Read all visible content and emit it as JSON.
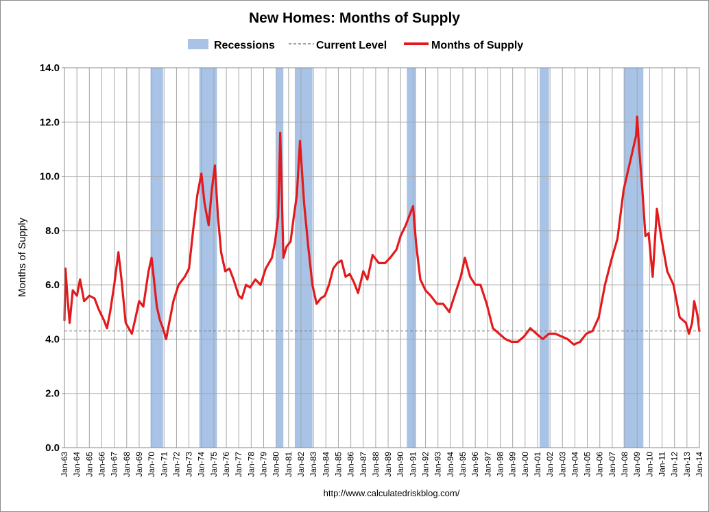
{
  "chart_data": {
    "type": "line",
    "title": "New Homes: Months of Supply",
    "xlabel": "",
    "ylabel": "Months of Supply",
    "ylim": [
      0,
      14
    ],
    "yticks": [
      "0.0",
      "2.0",
      "4.0",
      "6.0",
      "8.0",
      "10.0",
      "12.0",
      "14.0"
    ],
    "ytick_values": [
      0,
      2,
      4,
      6,
      8,
      10,
      12,
      14
    ],
    "x_range": [
      "1963-01",
      "2014-01"
    ],
    "x_tick_labels": [
      "Jan-63",
      "Jan-64",
      "Jan-65",
      "Jan-66",
      "Jan-67",
      "Jan-68",
      "Jan-69",
      "Jan-70",
      "Jan-71",
      "Jan-72",
      "Jan-73",
      "Jan-74",
      "Jan-75",
      "Jan-76",
      "Jan-77",
      "Jan-78",
      "Jan-79",
      "Jan-80",
      "Jan-81",
      "Jan-82",
      "Jan-83",
      "Jan-84",
      "Jan-85",
      "Jan-86",
      "Jan-87",
      "Jan-88",
      "Jan-89",
      "Jan-90",
      "Jan-91",
      "Jan-92",
      "Jan-93",
      "Jan-94",
      "Jan-95",
      "Jan-96",
      "Jan-97",
      "Jan-98",
      "Jan-99",
      "Jan-00",
      "Jan-01",
      "Jan-02",
      "Jan-03",
      "Jan-04",
      "Jan-05",
      "Jan-06",
      "Jan-07",
      "Jan-08",
      "Jan-09",
      "Jan-10",
      "Jan-11",
      "Jan-12",
      "Jan-13",
      "Jan-14"
    ],
    "grid": true,
    "legend_position": "top-center",
    "legend": [
      {
        "label": "Recessions",
        "style": "bar",
        "color": "#a8c3e6"
      },
      {
        "label": "Current Level",
        "style": "dashed",
        "color": "#7f7f7f"
      },
      {
        "label": "Months of Supply",
        "style": "line",
        "color": "#e31a1c"
      }
    ],
    "current_level": 4.3,
    "recessions": [
      {
        "start": "1969-12",
        "end": "1970-11"
      },
      {
        "start": "1973-11",
        "end": "1975-03"
      },
      {
        "start": "1980-01",
        "end": "1980-07"
      },
      {
        "start": "1981-07",
        "end": "1982-11"
      },
      {
        "start": "1990-07",
        "end": "1991-03"
      },
      {
        "start": "2001-03",
        "end": "2001-11"
      },
      {
        "start": "2007-12",
        "end": "2009-06"
      }
    ],
    "series": [
      {
        "name": "Months of Supply",
        "color": "#e31a1c",
        "points": [
          [
            "1963-01",
            4.7
          ],
          [
            "1963-02",
            6.6
          ],
          [
            "1963-04",
            5.5
          ],
          [
            "1963-06",
            4.6
          ],
          [
            "1963-09",
            5.8
          ],
          [
            "1964-01",
            5.6
          ],
          [
            "1964-04",
            6.2
          ],
          [
            "1964-08",
            5.4
          ],
          [
            "1965-01",
            5.6
          ],
          [
            "1965-06",
            5.5
          ],
          [
            "1965-10",
            5.1
          ],
          [
            "1966-03",
            4.7
          ],
          [
            "1966-06",
            4.4
          ],
          [
            "1966-09",
            5.0
          ],
          [
            "1967-01",
            6.0
          ],
          [
            "1967-05",
            7.2
          ],
          [
            "1967-08",
            6.2
          ],
          [
            "1967-12",
            4.6
          ],
          [
            "1968-03",
            4.4
          ],
          [
            "1968-06",
            4.2
          ],
          [
            "1968-09",
            4.7
          ],
          [
            "1969-01",
            5.4
          ],
          [
            "1969-05",
            5.2
          ],
          [
            "1969-10",
            6.5
          ],
          [
            "1970-01",
            7.0
          ],
          [
            "1970-03",
            6.3
          ],
          [
            "1970-06",
            5.2
          ],
          [
            "1970-09",
            4.7
          ],
          [
            "1970-12",
            4.4
          ],
          [
            "1971-03",
            4.0
          ],
          [
            "1971-06",
            4.6
          ],
          [
            "1971-10",
            5.4
          ],
          [
            "1972-03",
            6.0
          ],
          [
            "1972-09",
            6.3
          ],
          [
            "1973-01",
            6.6
          ],
          [
            "1973-05",
            8.0
          ],
          [
            "1973-09",
            9.3
          ],
          [
            "1974-01",
            10.1
          ],
          [
            "1974-04",
            9.0
          ],
          [
            "1974-08",
            8.2
          ],
          [
            "1974-11",
            9.5
          ],
          [
            "1975-02",
            10.4
          ],
          [
            "1975-05",
            8.5
          ],
          [
            "1975-08",
            7.2
          ],
          [
            "1975-12",
            6.5
          ],
          [
            "1976-04",
            6.6
          ],
          [
            "1976-08",
            6.2
          ],
          [
            "1977-01",
            5.6
          ],
          [
            "1977-04",
            5.5
          ],
          [
            "1977-08",
            6.0
          ],
          [
            "1977-12",
            5.9
          ],
          [
            "1978-05",
            6.2
          ],
          [
            "1978-10",
            6.0
          ],
          [
            "1979-03",
            6.6
          ],
          [
            "1979-09",
            7.0
          ],
          [
            "1979-12",
            7.6
          ],
          [
            "1980-03",
            8.5
          ],
          [
            "1980-05",
            11.6
          ],
          [
            "1980-08",
            7.0
          ],
          [
            "1980-11",
            7.4
          ],
          [
            "1981-03",
            7.6
          ],
          [
            "1981-06",
            8.5
          ],
          [
            "1981-09",
            9.3
          ],
          [
            "1981-12",
            11.3
          ],
          [
            "1982-04",
            9.0
          ],
          [
            "1982-08",
            7.4
          ],
          [
            "1982-12",
            6.0
          ],
          [
            "1983-04",
            5.3
          ],
          [
            "1983-08",
            5.5
          ],
          [
            "1983-12",
            5.6
          ],
          [
            "1984-04",
            6.0
          ],
          [
            "1984-08",
            6.6
          ],
          [
            "1984-12",
            6.8
          ],
          [
            "1985-04",
            6.9
          ],
          [
            "1985-08",
            6.3
          ],
          [
            "1985-12",
            6.4
          ],
          [
            "1986-04",
            6.1
          ],
          [
            "1986-08",
            5.7
          ],
          [
            "1987-01",
            6.5
          ],
          [
            "1987-05",
            6.2
          ],
          [
            "1987-10",
            7.1
          ],
          [
            "1988-04",
            6.8
          ],
          [
            "1988-10",
            6.8
          ],
          [
            "1989-03",
            7.0
          ],
          [
            "1989-09",
            7.3
          ],
          [
            "1990-01",
            7.8
          ],
          [
            "1990-06",
            8.2
          ],
          [
            "1990-09",
            8.5
          ],
          [
            "1991-01",
            8.9
          ],
          [
            "1991-04",
            7.5
          ],
          [
            "1991-08",
            6.2
          ],
          [
            "1992-01",
            5.8
          ],
          [
            "1992-06",
            5.6
          ],
          [
            "1992-12",
            5.3
          ],
          [
            "1993-06",
            5.3
          ],
          [
            "1993-12",
            5.0
          ],
          [
            "1994-05",
            5.6
          ],
          [
            "1994-11",
            6.3
          ],
          [
            "1995-03",
            7.0
          ],
          [
            "1995-08",
            6.3
          ],
          [
            "1996-01",
            6.0
          ],
          [
            "1996-06",
            6.0
          ],
          [
            "1996-12",
            5.3
          ],
          [
            "1997-06",
            4.4
          ],
          [
            "1997-12",
            4.2
          ],
          [
            "1998-06",
            4.0
          ],
          [
            "1998-12",
            3.9
          ],
          [
            "1999-06",
            3.9
          ],
          [
            "1999-12",
            4.1
          ],
          [
            "2000-06",
            4.4
          ],
          [
            "2000-12",
            4.2
          ],
          [
            "2001-06",
            4.0
          ],
          [
            "2001-12",
            4.2
          ],
          [
            "2002-06",
            4.2
          ],
          [
            "2002-12",
            4.1
          ],
          [
            "2003-06",
            4.0
          ],
          [
            "2003-12",
            3.8
          ],
          [
            "2004-06",
            3.9
          ],
          [
            "2004-12",
            4.2
          ],
          [
            "2005-06",
            4.3
          ],
          [
            "2005-12",
            4.8
          ],
          [
            "2006-06",
            6.0
          ],
          [
            "2006-12",
            6.9
          ],
          [
            "2007-06",
            7.7
          ],
          [
            "2007-12",
            9.5
          ],
          [
            "2008-06",
            10.5
          ],
          [
            "2008-12",
            11.5
          ],
          [
            "2009-01",
            12.2
          ],
          [
            "2009-03",
            11.0
          ],
          [
            "2009-06",
            9.5
          ],
          [
            "2009-09",
            7.8
          ],
          [
            "2009-12",
            7.9
          ],
          [
            "2010-04",
            6.3
          ],
          [
            "2010-08",
            8.8
          ],
          [
            "2010-12",
            7.8
          ],
          [
            "2011-06",
            6.5
          ],
          [
            "2011-12",
            6.0
          ],
          [
            "2012-06",
            4.8
          ],
          [
            "2012-12",
            4.6
          ],
          [
            "2013-03",
            4.2
          ],
          [
            "2013-06",
            4.6
          ],
          [
            "2013-08",
            5.4
          ],
          [
            "2013-11",
            4.9
          ],
          [
            "2014-01",
            4.3
          ]
        ]
      }
    ]
  },
  "source_text": "http://www.calculatedriskblog.com/"
}
